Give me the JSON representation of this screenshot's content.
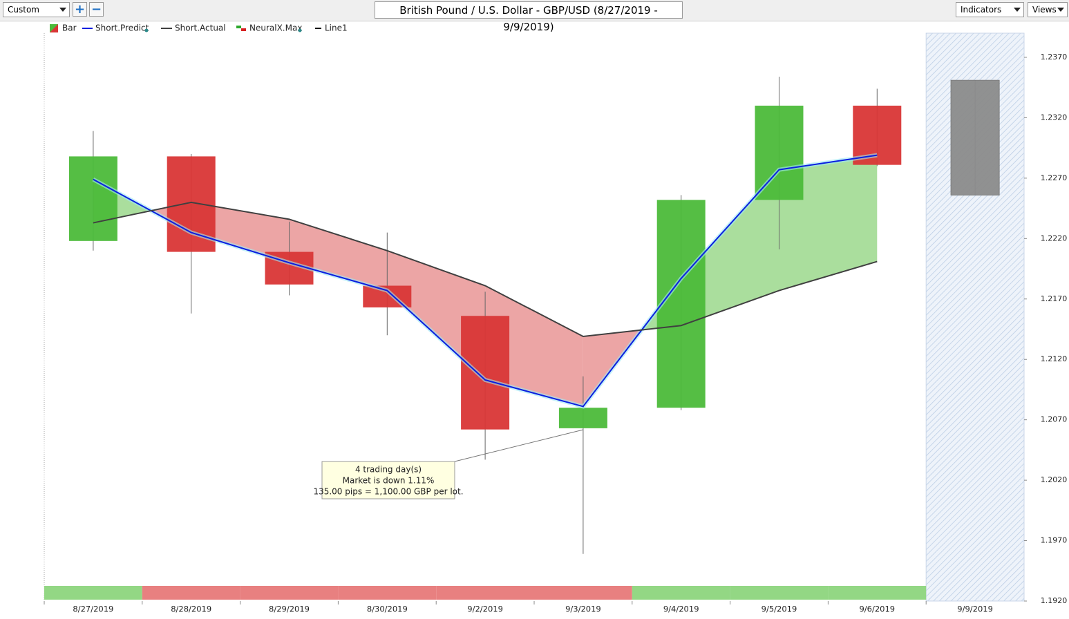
{
  "toolbar": {
    "preset": "Custom",
    "title": "British Pound / U.S. Dollar - GBP/USD (8/27/2019 - 9/9/2019)",
    "indicators": "Indicators",
    "views": "Views"
  },
  "chart_data": {
    "type": "candlestick",
    "categories": [
      "8/27/2019",
      "8/28/2019",
      "8/29/2019",
      "8/30/2019",
      "9/2/2019",
      "9/3/2019",
      "9/4/2019",
      "9/5/2019",
      "9/6/2019",
      "9/9/2019"
    ],
    "open": [
      1.2218,
      1.2288,
      1.2209,
      1.2181,
      1.2156,
      1.2063,
      1.208,
      1.2252,
      1.233,
      1.2351
    ],
    "high": [
      1.2309,
      1.229,
      1.2234,
      1.2225,
      1.2176,
      1.2106,
      1.2256,
      1.2354,
      1.2344,
      1.2351
    ],
    "low": [
      1.221,
      1.2158,
      1.2173,
      1.214,
      1.2037,
      1.1959,
      1.2078,
      1.2211,
      1.228,
      1.2256
    ],
    "close": [
      1.2288,
      1.2209,
      1.2182,
      1.2163,
      1.2062,
      1.208,
      1.2252,
      1.233,
      1.2281,
      1.2256
    ],
    "colors": [
      "#4cbb3a",
      "#d93636",
      "#d93636",
      "#d93636",
      "#d93636",
      "#4cbb3a",
      "#4cbb3a",
      "#4cbb3a",
      "#d93636",
      "#8c8c8c"
    ],
    "bar_legend": "Bar",
    "series": [
      {
        "name": "Short.Predict",
        "color": "#0a1fe0",
        "values": [
          1.2269,
          1.2225,
          1.22,
          1.2177,
          1.2103,
          1.2081,
          1.2187,
          1.2277,
          1.2289,
          null
        ]
      },
      {
        "name": "Short.Actual",
        "color": "#404040",
        "values": [
          1.2233,
          1.225,
          1.2236,
          1.221,
          1.2181,
          1.2139,
          1.2148,
          1.2177,
          1.2201,
          null
        ]
      }
    ],
    "fill_colors": {
      "up": "#a5dc98",
      "down": "#eba0a0"
    },
    "neuralx": {
      "name": "NeuralX.Max",
      "colors": [
        "#93d784",
        "#e88080",
        "#e88080",
        "#e88080",
        "#e88080",
        "#e88080",
        "#93d784",
        "#93d784",
        "#93d784",
        null
      ]
    },
    "line1": {
      "name": "Line1",
      "color": "#000000"
    },
    "annotation": [
      "4 trading day(s)",
      "Market is down 1.11%",
      "135.00 pips = 1,100.00 GBP per lot."
    ],
    "ylim": [
      1.192,
      1.239
    ],
    "yticks": [
      {
        "value": 1.237,
        "label": "1.2370"
      },
      {
        "value": 1.232,
        "label": "1.2320"
      },
      {
        "value": 1.227,
        "label": "1.2270"
      },
      {
        "value": 1.222,
        "label": "1.2220"
      },
      {
        "value": 1.217,
        "label": "1.2170"
      },
      {
        "value": 1.212,
        "label": "1.2120"
      },
      {
        "value": 1.207,
        "label": "1.2070"
      },
      {
        "value": 1.202,
        "label": "1.2020"
      },
      {
        "value": 1.197,
        "label": "1.1970"
      },
      {
        "value": 1.192,
        "label": "1.1920"
      }
    ]
  }
}
